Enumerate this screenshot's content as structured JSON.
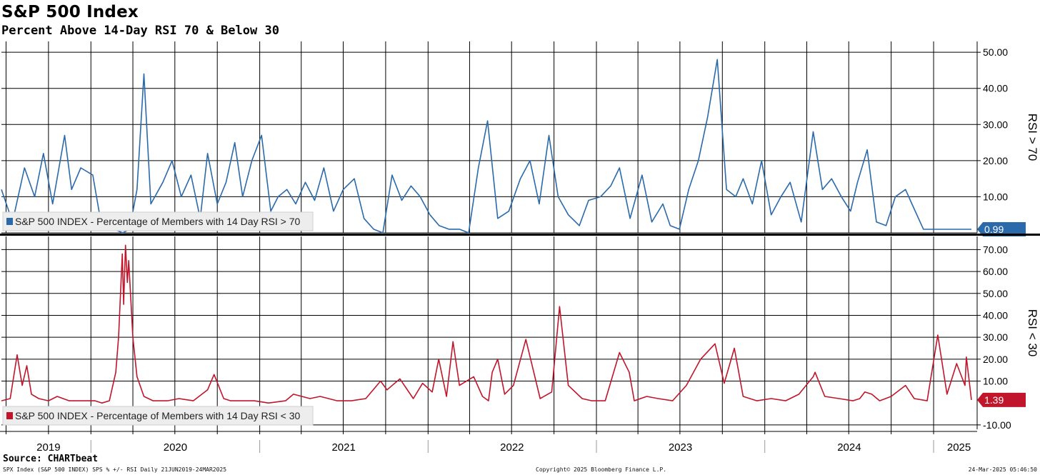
{
  "title": "S&P 500 Index",
  "subtitle": "Percent Above 14-Day RSI 70 & Below 30",
  "source": "Source: CHARTbeat",
  "footer": {
    "left": "SPX Index (S&P 500 INDEX) SPS % +/- RSI  Daily 21JUN2019-24MAR2025",
    "center": "Copyright© 2025 Bloomberg Finance L.P.",
    "right": "24-Mar-2025 05:46:50"
  },
  "colors": {
    "top_series": "#2a6aab",
    "bottom_series": "#c0152b",
    "grid": "#000000"
  },
  "chart_data": [
    {
      "type": "line",
      "title": "",
      "ylabel": "RSI > 70",
      "ylim": [
        0,
        53
      ],
      "yticks": [
        10,
        20,
        30,
        40,
        50
      ],
      "ytick_labels": [
        "10.00",
        "20.00",
        "30.00",
        "40.00",
        "50.00"
      ],
      "last_value": 0.99,
      "last_value_label": "0.99",
      "legend": "S&P 500 INDEX - Percentage of Members with 14 Day RSI > 70",
      "legend_position": "bottom-left",
      "grid": true,
      "series": [
        {
          "name": "S&P 500 INDEX - Percentage of Members with 14 Day RSI > 70",
          "color": "#2a6aab",
          "x": [
            "2019-06-21",
            "2019-07-15",
            "2019-08-10",
            "2019-09-01",
            "2019-09-20",
            "2019-10-10",
            "2019-11-05",
            "2019-11-20",
            "2019-12-10",
            "2020-01-05",
            "2020-01-20",
            "2020-02-05",
            "2020-02-20",
            "2020-03-10",
            "2020-03-25",
            "2020-04-10",
            "2020-04-25",
            "2020-05-10",
            "2020-06-05",
            "2020-06-25",
            "2020-07-15",
            "2020-08-05",
            "2020-08-25",
            "2020-09-10",
            "2020-10-01",
            "2020-10-20",
            "2020-11-08",
            "2020-11-25",
            "2020-12-15",
            "2021-01-05",
            "2021-01-25",
            "2021-02-10",
            "2021-03-01",
            "2021-03-20",
            "2021-04-10",
            "2021-04-30",
            "2021-05-20",
            "2021-06-10",
            "2021-07-01",
            "2021-07-25",
            "2021-08-15",
            "2021-09-05",
            "2021-09-25",
            "2021-10-15",
            "2021-11-05",
            "2021-11-25",
            "2021-12-15",
            "2022-01-05",
            "2022-01-25",
            "2022-02-15",
            "2022-03-10",
            "2022-03-30",
            "2022-04-20",
            "2022-05-10",
            "2022-06-01",
            "2022-06-25",
            "2022-07-20",
            "2022-08-10",
            "2022-08-30",
            "2022-09-20",
            "2022-10-10",
            "2022-11-01",
            "2022-11-25",
            "2022-12-15",
            "2023-01-10",
            "2023-02-01",
            "2023-02-20",
            "2023-03-15",
            "2023-04-10",
            "2023-05-01",
            "2023-05-25",
            "2023-06-10",
            "2023-06-30",
            "2023-07-20",
            "2023-08-10",
            "2023-08-30",
            "2023-09-20",
            "2023-10-10",
            "2023-10-30",
            "2023-11-15",
            "2023-12-05",
            "2023-12-25",
            "2024-01-15",
            "2024-02-05",
            "2024-02-25",
            "2024-03-20",
            "2024-04-15",
            "2024-05-05",
            "2024-05-25",
            "2024-06-15",
            "2024-07-05",
            "2024-07-20",
            "2024-08-10",
            "2024-08-30",
            "2024-09-20",
            "2024-10-10",
            "2024-11-01",
            "2024-11-15",
            "2024-12-10",
            "2025-01-05",
            "2025-01-25",
            "2025-02-10",
            "2025-02-28",
            "2025-03-15",
            "2025-03-24"
          ],
          "values": [
            12,
            3,
            18,
            10,
            22,
            8,
            27,
            12,
            18,
            16,
            5,
            1,
            1,
            0,
            1,
            12,
            44,
            8,
            14,
            20,
            10,
            16,
            4,
            22,
            8,
            14,
            25,
            10,
            20,
            27,
            6,
            10,
            12,
            8,
            14,
            9,
            18,
            6,
            12,
            15,
            4,
            1,
            0,
            16,
            9,
            13,
            10,
            5,
            2,
            1,
            1,
            0,
            18,
            31,
            4,
            6,
            15,
            20,
            8,
            27,
            10,
            5,
            2,
            9,
            10,
            13,
            18,
            4,
            16,
            3,
            8,
            2,
            1,
            12,
            20,
            32,
            48,
            12,
            10,
            15,
            8,
            20,
            5,
            10,
            14,
            3,
            28,
            12,
            15,
            10,
            6,
            14,
            23,
            3,
            2,
            10,
            12,
            8,
            1,
            0.99,
            0.99,
            0.99,
            0.99,
            0.99,
            0.99
          ]
        }
      ]
    },
    {
      "type": "line",
      "title": "",
      "ylabel": "RSI < 30",
      "ylim": [
        -12,
        76
      ],
      "yticks": [
        -10,
        10,
        20,
        30,
        40,
        50,
        60,
        70
      ],
      "ytick_labels": [
        "-10.00",
        "10.00",
        "20.00",
        "30.00",
        "40.00",
        "50.00",
        "60.00",
        "70.00"
      ],
      "last_value": 1.39,
      "last_value_label": "1.39",
      "legend": "S&P 500 INDEX - Percentage of Members with 14 Day RSI < 30",
      "legend_position": "bottom-left",
      "grid": true,
      "series": [
        {
          "name": "S&P 500 INDEX - Percentage of Members with 14 Day RSI < 30",
          "color": "#c0152b",
          "x": [
            "2019-06-21",
            "2019-07-10",
            "2019-07-25",
            "2019-08-05",
            "2019-08-15",
            "2019-08-25",
            "2019-09-10",
            "2019-10-01",
            "2019-10-20",
            "2019-11-15",
            "2019-12-15",
            "2020-01-10",
            "2020-01-25",
            "2020-02-10",
            "2020-02-24",
            "2020-03-01",
            "2020-03-09",
            "2020-03-12",
            "2020-03-16",
            "2020-03-20",
            "2020-03-23",
            "2020-04-01",
            "2020-04-10",
            "2020-04-25",
            "2020-05-15",
            "2020-06-15",
            "2020-07-10",
            "2020-08-10",
            "2020-09-10",
            "2020-09-24",
            "2020-10-15",
            "2020-10-30",
            "2020-11-20",
            "2020-12-20",
            "2021-01-20",
            "2021-02-26",
            "2021-03-15",
            "2021-04-20",
            "2021-05-12",
            "2021-06-18",
            "2021-07-19",
            "2021-08-19",
            "2021-09-20",
            "2021-10-04",
            "2021-11-01",
            "2021-11-30",
            "2021-12-20",
            "2022-01-10",
            "2022-01-24",
            "2022-02-10",
            "2022-02-24",
            "2022-03-10",
            "2022-04-10",
            "2022-04-29",
            "2022-05-12",
            "2022-05-20",
            "2022-06-01",
            "2022-06-16",
            "2022-07-05",
            "2022-08-01",
            "2022-09-01",
            "2022-09-26",
            "2022-10-13",
            "2022-11-01",
            "2022-12-01",
            "2022-12-22",
            "2023-01-20",
            "2023-02-20",
            "2023-03-13",
            "2023-03-24",
            "2023-04-20",
            "2023-05-15",
            "2023-06-15",
            "2023-07-15",
            "2023-08-15",
            "2023-09-15",
            "2023-10-05",
            "2023-10-27",
            "2023-11-15",
            "2023-12-15",
            "2024-01-15",
            "2024-02-15",
            "2024-03-15",
            "2024-04-15",
            "2024-04-19",
            "2024-05-10",
            "2024-06-10",
            "2024-07-10",
            "2024-07-25",
            "2024-08-05",
            "2024-08-20",
            "2024-09-06",
            "2024-10-01",
            "2024-11-01",
            "2024-11-20",
            "2024-12-18",
            "2025-01-10",
            "2025-01-30",
            "2025-02-20",
            "2025-03-10",
            "2025-03-13",
            "2025-03-24"
          ],
          "values": [
            1,
            2,
            22,
            8,
            17,
            4,
            2,
            1,
            3,
            1,
            1,
            1,
            0,
            1,
            14,
            30,
            68,
            45,
            72,
            55,
            65,
            30,
            12,
            3,
            1,
            1,
            2,
            1,
            6,
            13,
            2,
            1,
            1,
            1,
            0,
            1,
            4,
            2,
            3,
            1,
            1,
            2,
            10,
            6,
            11,
            2,
            9,
            5,
            20,
            3,
            28,
            8,
            12,
            3,
            1,
            14,
            20,
            4,
            8,
            29,
            2,
            5,
            44,
            8,
            2,
            1,
            1,
            23,
            14,
            1,
            3,
            2,
            1,
            8,
            20,
            27,
            9,
            25,
            3,
            1,
            2,
            1,
            4,
            12,
            14,
            3,
            2,
            1,
            2,
            5,
            4,
            1,
            3,
            8,
            2,
            1,
            31,
            4,
            18,
            8,
            21,
            1.39
          ]
        }
      ]
    }
  ],
  "x_axis": {
    "tick_labels": [
      "2019",
      "2020",
      "2021",
      "2022",
      "2023",
      "2024",
      "2025"
    ],
    "label_dates": [
      "2019-10-01",
      "2020-07-02",
      "2021-07-02",
      "2022-07-02",
      "2023-07-02",
      "2024-07-02",
      "2025-02-25"
    ],
    "year_boundaries": [
      "2020-01-01",
      "2021-01-01",
      "2022-01-01",
      "2023-01-01",
      "2024-01-01",
      "2025-01-01"
    ],
    "range": [
      "2019-06-21",
      "2025-03-24"
    ]
  }
}
